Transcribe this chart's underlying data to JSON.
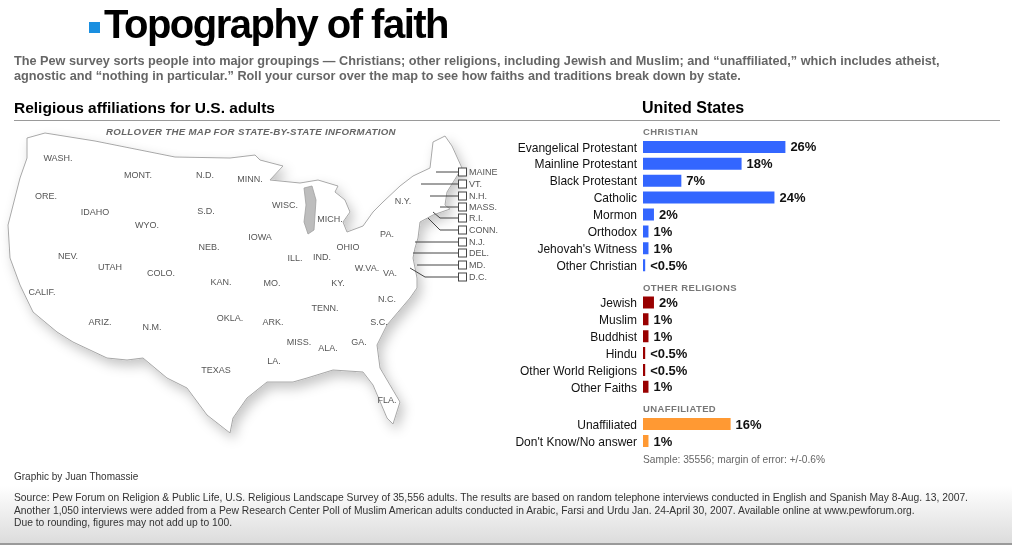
{
  "chart_data": {
    "type": "bar",
    "orientation": "horizontal",
    "title": "Topography of faith",
    "subtitle": "The Pew survey sorts people into major groupings — Christians; other religions, including Jewish and Muslim; and “unaffiliated,” which includes atheist, agnostic and “nothing in particular.” Roll your cursor over the map to see how faiths and traditions break down by state.",
    "categories": [
      "Evangelical Protestant",
      "Mainline Protestant",
      "Black Protestant",
      "Catholic",
      "Mormon",
      "Orthodox",
      "Jehovah's Witness",
      "Other Christian",
      "Jewish",
      "Muslim",
      "Buddhist",
      "Hindu",
      "Other World Religions",
      "Other Faiths",
      "Unaffiliated",
      "Don't Know/No answer"
    ],
    "series": [
      {
        "name": "CHRISTIAN",
        "color": "#3366ff",
        "values": [
          26,
          18,
          7,
          24,
          2,
          1,
          1,
          0.4,
          null,
          null,
          null,
          null,
          null,
          null,
          null,
          null
        ],
        "value_labels": [
          "26%",
          "18%",
          "7%",
          "24%",
          "2%",
          "1%",
          "1%",
          "<0.5%",
          null,
          null,
          null,
          null,
          null,
          null,
          null,
          null
        ]
      },
      {
        "name": "OTHER RELIGIONS",
        "color": "#990000",
        "values": [
          null,
          null,
          null,
          null,
          null,
          null,
          null,
          null,
          2,
          1,
          1,
          0.4,
          0.4,
          1,
          null,
          null
        ],
        "value_labels": [
          null,
          null,
          null,
          null,
          null,
          null,
          null,
          null,
          "2%",
          "1%",
          "1%",
          "<0.5%",
          "<0.5%",
          "1%",
          null,
          null
        ]
      },
      {
        "name": "UNAFFILIATED",
        "color": "#ff9933",
        "values": [
          null,
          null,
          null,
          null,
          null,
          null,
          null,
          null,
          null,
          null,
          null,
          null,
          null,
          null,
          16,
          1
        ],
        "value_labels": [
          null,
          null,
          null,
          null,
          null,
          null,
          null,
          null,
          null,
          null,
          null,
          null,
          null,
          null,
          "16%",
          "1%"
        ]
      }
    ],
    "annotations": [
      "Religious affiliations for U.S. adults",
      "ROLLOVER THE MAP FOR STATE-BY-STATE INFORMATION",
      "WASH.",
      "MONT.",
      "N.D.",
      "MINN.",
      "ORE.",
      "IDAHO",
      "WYO.",
      "S.D.",
      "WISC.",
      "MICH.",
      "N.Y.",
      "PA.",
      "IOWA",
      "NEB.",
      "OHIO",
      "NEV.",
      "ILL.",
      "IND.",
      "UTAH",
      "COLO.",
      "W.VA.",
      "VA.",
      "KAN.",
      "MO.",
      "KY.",
      "CALIF.",
      "N.C.",
      "TENN.",
      "ARIZ.",
      "OKLA.",
      "ARK.",
      "S.C.",
      "N.M.",
      "MISS.",
      "ALA.",
      "GA.",
      "LA.",
      "TEXAS",
      "FLA.",
      "MAINE",
      "VT.",
      "N.H.",
      "MASS.",
      "R.I.",
      "CONN.",
      "N.J.",
      "DEL.",
      "MD.",
      "D.C.",
      "United States",
      "Sample: 35556; margin of error: +/-0.6%",
      "Graphic by Juan Thomassie",
      "Source: Pew Forum on Religion & Public Life, U.S. Religious Landscape Survey of 35,556 adults. The results are based on random telephone interviews conducted in English and Spanish May 8-Aug. 13, 2007.",
      "Another 1,050 interviews were added from a Pew Research Center Poll of Muslim American adults conducted in Arabic, Farsi and Urdu Jan. 24-April 30, 2007. Available online at www.pewforum.org.",
      "Due to rounding, figures may not add up to 100."
    ]
  }
}
